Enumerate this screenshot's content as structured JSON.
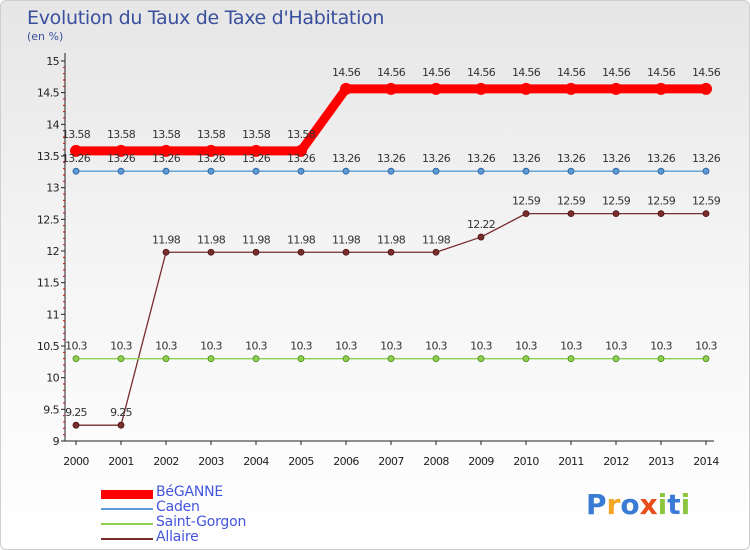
{
  "header": {
    "title": "Evolution du Taux de Taxe d'Habitation",
    "subtitle": "(en %)"
  },
  "chart_data": {
    "type": "line",
    "title": "Evolution du Taux de Taxe d'Habitation",
    "ylabel": "(en %)",
    "xlabel": "",
    "x": [
      "2000",
      "2001",
      "2002",
      "2003",
      "2004",
      "2005",
      "2006",
      "2007",
      "2008",
      "2009",
      "2010",
      "2011",
      "2012",
      "2013",
      "2014"
    ],
    "ylim": [
      9,
      15
    ],
    "yticks": [
      "9",
      "9.5",
      "10",
      "10.5",
      "11",
      "11.5",
      "12",
      "12.5",
      "13",
      "13.5",
      "14",
      "14.5",
      "15"
    ],
    "grid": false,
    "legend_position": "bottom-left",
    "series": [
      {
        "name": "BéGANNE",
        "color": "#ff0000",
        "values": [
          13.58,
          13.58,
          13.58,
          13.58,
          13.58,
          13.58,
          14.56,
          14.56,
          14.56,
          14.56,
          14.56,
          14.56,
          14.56,
          14.56,
          14.56
        ],
        "labels": [
          "13.58",
          "13.58",
          "13.58",
          "13.58",
          "13.58",
          "13.58",
          "14.56",
          "14.56",
          "14.56",
          "14.56",
          "14.56",
          "14.56",
          "14.56",
          "14.56",
          "14.56"
        ]
      },
      {
        "name": "Caden",
        "color": "#5a9bd5",
        "values": [
          13.26,
          13.26,
          13.26,
          13.26,
          13.26,
          13.26,
          13.26,
          13.26,
          13.26,
          13.26,
          13.26,
          13.26,
          13.26,
          13.26,
          13.26
        ],
        "labels": [
          "13.26",
          "13.26",
          "13.26",
          "13.26",
          "13.26",
          "13.26",
          "13.26",
          "13.26",
          "13.26",
          "13.26",
          "13.26",
          "13.26",
          "13.26",
          "13.26",
          "13.26"
        ]
      },
      {
        "name": "Saint-Gorgon",
        "color": "#8fd14f",
        "values": [
          10.3,
          10.3,
          10.3,
          10.3,
          10.3,
          10.3,
          10.3,
          10.3,
          10.3,
          10.3,
          10.3,
          10.3,
          10.3,
          10.3,
          10.3
        ],
        "labels": [
          "10.3",
          "10.3",
          "10.3",
          "10.3",
          "10.3",
          "10.3",
          "10.3",
          "10.3",
          "10.3",
          "10.3",
          "10.3",
          "10.3",
          "10.3",
          "10.3",
          "10.3"
        ]
      },
      {
        "name": "Allaire",
        "color": "#7a2d2d",
        "values": [
          9.25,
          9.25,
          11.98,
          11.98,
          11.98,
          11.98,
          11.98,
          11.98,
          11.98,
          12.22,
          12.59,
          12.59,
          12.59,
          12.59,
          12.59
        ],
        "labels": [
          "9.25",
          "9.25",
          "11.98",
          "11.98",
          "11.98",
          "11.98",
          "11.98",
          "11.98",
          "11.98",
          "12.22",
          "12.59",
          "12.59",
          "12.59",
          "12.59",
          "12.59"
        ]
      }
    ]
  },
  "brand": {
    "logo_letters": [
      "P",
      "r",
      "o",
      "x",
      "i",
      "t",
      "i"
    ],
    "logo_colors": [
      "#3a7bd5",
      "#f5a623",
      "#3a7bd5",
      "#e94e1b",
      "#8cc63f",
      "#3a7bd5",
      "#8cc63f"
    ]
  }
}
